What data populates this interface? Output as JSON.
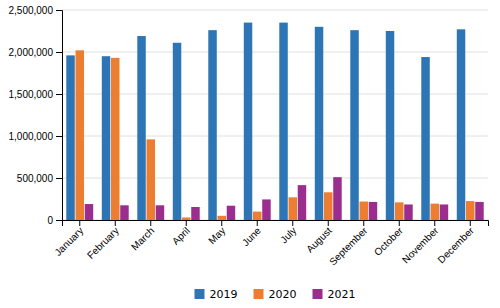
{
  "chart_data": {
    "type": "bar",
    "categories": [
      "January",
      "February",
      "March",
      "April",
      "May",
      "June",
      "July",
      "August",
      "September",
      "October",
      "November",
      "December"
    ],
    "series": [
      {
        "name": "2019",
        "color": "#2E75B6",
        "values": [
          1960000,
          1950000,
          2190000,
          2110000,
          2260000,
          2350000,
          2350000,
          2300000,
          2260000,
          2250000,
          1940000,
          2270000
        ]
      },
      {
        "name": "2020",
        "color": "#ED7D31",
        "values": [
          2020000,
          1930000,
          960000,
          30000,
          50000,
          100000,
          270000,
          330000,
          220000,
          210000,
          195000,
          225000
        ]
      },
      {
        "name": "2021",
        "color": "#9B2D8E",
        "values": [
          190000,
          175000,
          175000,
          155000,
          170000,
          245000,
          415000,
          510000,
          215000,
          185000,
          185000,
          215000
        ]
      }
    ],
    "ylim": [
      0,
      2500000
    ],
    "yticks": [
      0,
      {
        "value": 500000,
        "label": "500,000"
      },
      {
        "value": 1000000,
        "label": "1,000,000"
      },
      {
        "value": 1500000,
        "label": "1,500,000"
      },
      {
        "value": 2000000,
        "label": "2,000,000"
      },
      {
        "value": 2500000,
        "label": "2,500,000"
      }
    ],
    "grid": true,
    "legend": "bottom"
  }
}
